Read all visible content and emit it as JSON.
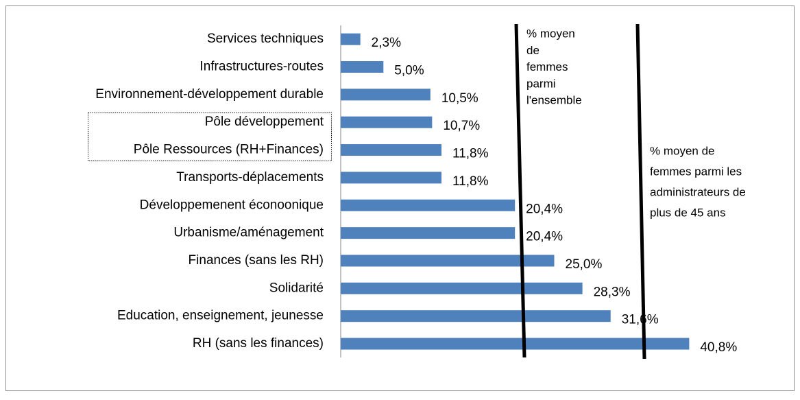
{
  "chart_data": {
    "type": "bar",
    "orientation": "horizontal",
    "categories": [
      "Services techniques",
      "Infrastructures-routes",
      "Environnement-développement durable",
      "Pôle développement",
      "Pôle Ressources (RH+Finances)",
      "Transports-déplacements",
      "Développemenent éconoonique",
      "Urbanisme/aménagement",
      "Finances (sans les RH)",
      "Solidarité",
      "Education, enseignement, jeunesse",
      "RH (sans les finances)"
    ],
    "values": [
      2.3,
      5.0,
      10.5,
      10.7,
      11.8,
      11.8,
      20.4,
      20.4,
      25.0,
      28.3,
      31.6,
      40.8
    ],
    "value_labels": [
      "2,3%",
      "5,0%",
      "10,5%",
      "10,7%",
      "11,8%",
      "11,8%",
      "20,4%",
      "20,4%",
      "25,0%",
      "28,3%",
      "31,6%",
      "40,8%"
    ],
    "color": "#4f81bd",
    "xlim": [
      0,
      50
    ],
    "annotations": [
      [
        "% moyen",
        "de",
        "femmes",
        "parmi",
        "l'ensemble"
      ],
      [
        "% moyen de",
        "femmes parmi les",
        "administrateurs de",
        "plus de 45 ans"
      ]
    ]
  }
}
